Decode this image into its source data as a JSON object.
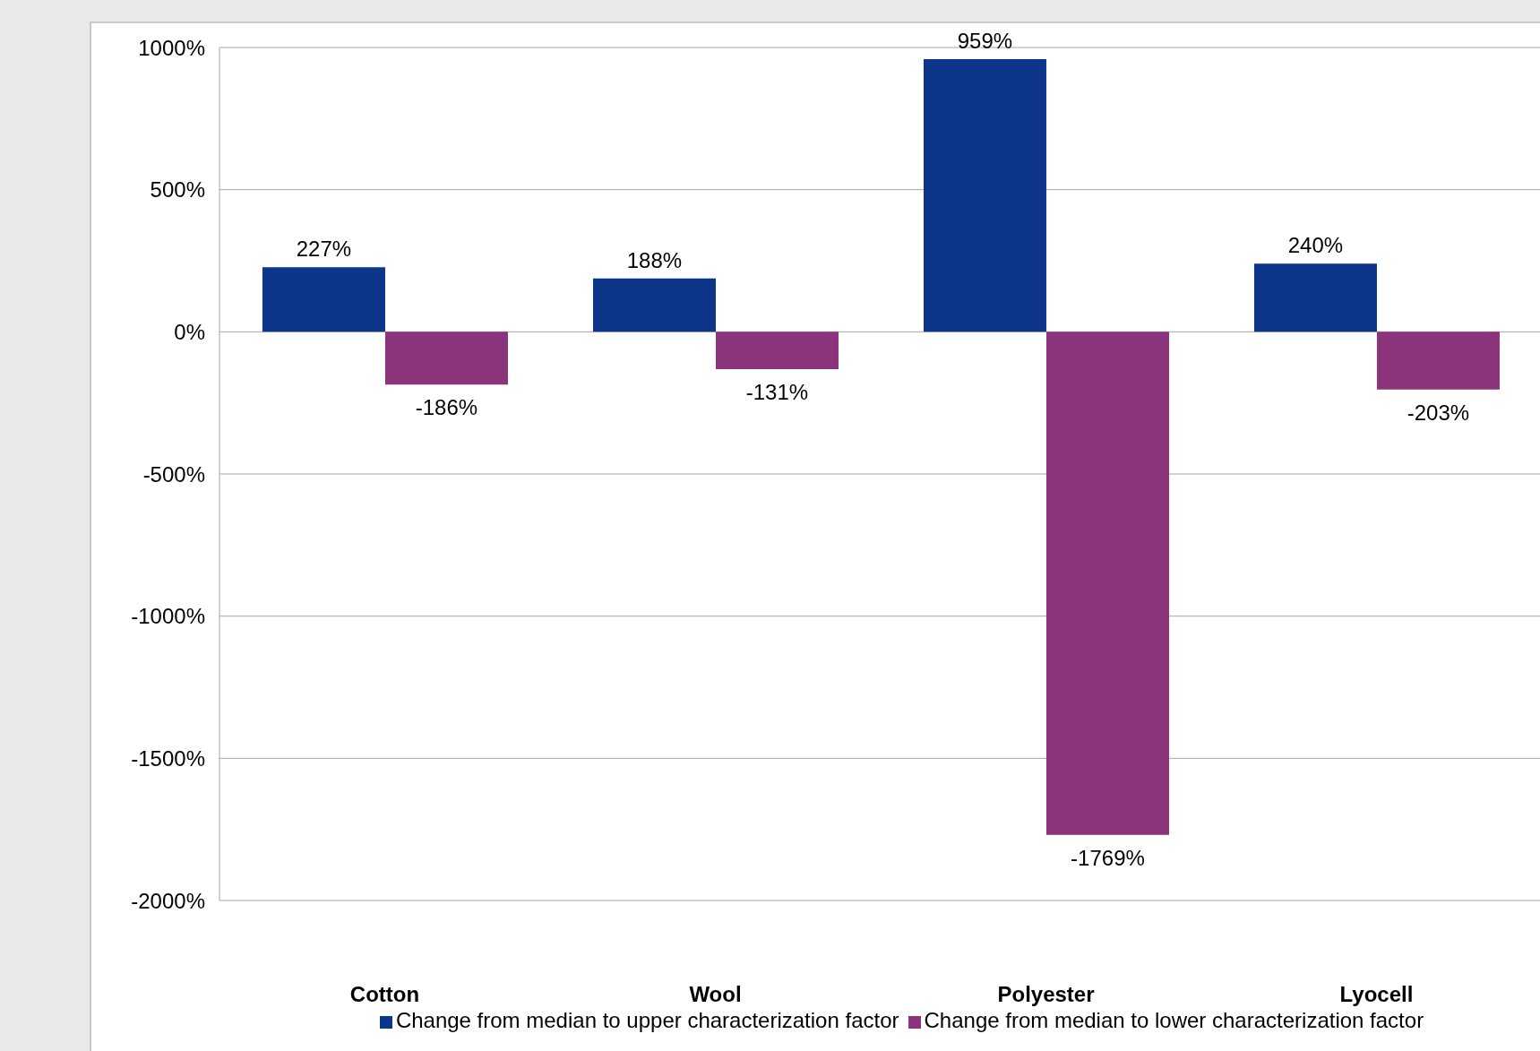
{
  "chart_data": {
    "type": "bar",
    "categories": [
      "Cotton",
      "Wool",
      "Polyester",
      "Lyocell"
    ],
    "series": [
      {
        "name": "Change from median to upper characterization factor",
        "color": "#0d358a",
        "values": [
          227,
          188,
          959,
          240
        ],
        "value_labels": [
          "227%",
          "188%",
          "959%",
          "240%"
        ]
      },
      {
        "name": "Change from median to lower characterization factor",
        "color": "#8b337b",
        "values": [
          -186,
          -131,
          -1769,
          -203
        ],
        "value_labels": [
          "-186%",
          "-131%",
          "-1769%",
          "-203%"
        ]
      }
    ],
    "ylim": [
      -2000,
      1000
    ],
    "yticks": [
      {
        "value": -2000,
        "label": "-2000%"
      },
      {
        "value": -1500,
        "label": "-1500%"
      },
      {
        "value": -1000,
        "label": "-1000%"
      },
      {
        "value": -500,
        "label": "-500%"
      },
      {
        "value": 0,
        "label": "0%"
      },
      {
        "value": 500,
        "label": "500%"
      },
      {
        "value": 1000,
        "label": "1000%"
      }
    ],
    "grid": "y",
    "legend": "bottom"
  }
}
